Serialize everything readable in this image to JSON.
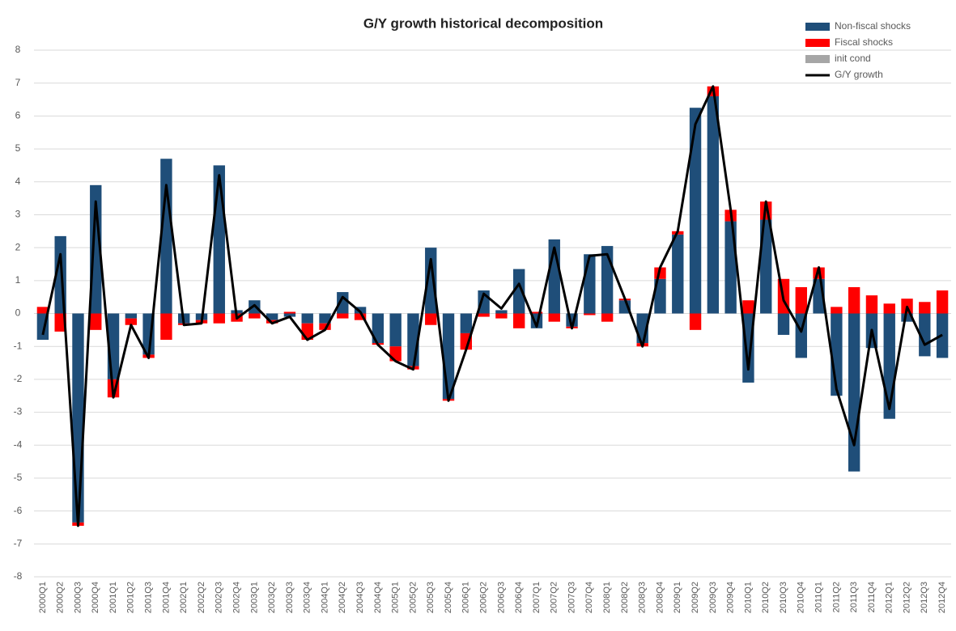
{
  "chart_data": {
    "type": "stacked_bar_line",
    "title": "G/Y growth historical decomposition",
    "categories": [
      "2000Q1",
      "2000Q2",
      "2000Q3",
      "2000Q4",
      "2001Q1",
      "2001Q2",
      "2001Q3",
      "2001Q4",
      "2002Q1",
      "2002Q2",
      "2002Q3",
      "2002Q4",
      "2003Q1",
      "2003Q2",
      "2003Q3",
      "2003Q4",
      "2004Q1",
      "2004Q2",
      "2004Q3",
      "2004Q4",
      "2005Q1",
      "2005Q2",
      "2005Q3",
      "2005Q4",
      "2006Q1",
      "2006Q2",
      "2006Q3",
      "2006Q4",
      "2007Q1",
      "2007Q2",
      "2007Q3",
      "2007Q4",
      "2008Q1",
      "2008Q2",
      "2008Q3",
      "2008Q4",
      "2009Q1",
      "2009Q2",
      "2009Q3",
      "2009Q4",
      "2010Q1",
      "2010Q2",
      "2010Q3",
      "2010Q4",
      "2011Q1",
      "2011Q2",
      "2011Q3",
      "2011Q4",
      "2012Q1",
      "2012Q2",
      "2012Q3",
      "2012Q4"
    ],
    "series": [
      {
        "name": "Non-fiscal shocks",
        "kind": "bar",
        "color": "#1f4e79",
        "values": [
          -0.8,
          2.35,
          -6.35,
          3.9,
          -2.0,
          -0.15,
          -1.25,
          4.7,
          -0.3,
          -0.2,
          4.5,
          0.1,
          0.4,
          -0.2,
          -0.1,
          -0.3,
          -0.3,
          0.65,
          0.2,
          -0.9,
          -1.0,
          -1.6,
          2.0,
          -2.6,
          -0.6,
          0.7,
          0.1,
          1.35,
          -0.45,
          2.25,
          -0.4,
          1.8,
          2.05,
          0.4,
          -0.9,
          1.05,
          2.4,
          6.25,
          6.6,
          2.8,
          -2.1,
          2.85,
          -0.65,
          -1.35,
          1.05,
          -2.5,
          -4.8,
          -1.05,
          -3.2,
          -0.25,
          -1.3,
          -1.35
        ]
      },
      {
        "name": "Fiscal shocks",
        "kind": "bar",
        "color": "#ff0000",
        "values": [
          0.2,
          -0.55,
          -0.1,
          -0.5,
          -0.55,
          -0.2,
          -0.1,
          -0.8,
          -0.05,
          -0.1,
          -0.3,
          -0.25,
          -0.15,
          -0.1,
          0.05,
          -0.5,
          -0.2,
          -0.15,
          -0.2,
          -0.05,
          -0.45,
          -0.1,
          -0.35,
          -0.05,
          -0.5,
          -0.1,
          -0.15,
          -0.45,
          0.05,
          -0.25,
          -0.05,
          -0.05,
          -0.25,
          0.05,
          -0.1,
          0.35,
          0.1,
          -0.5,
          0.3,
          0.35,
          0.4,
          0.55,
          1.05,
          0.8,
          0.35,
          0.2,
          0.8,
          0.55,
          0.3,
          0.45,
          0.35,
          0.7
        ]
      },
      {
        "name": "init cond",
        "kind": "bar",
        "color": "#a6a6a6",
        "values": [
          0,
          0,
          0,
          0,
          0,
          0,
          0,
          0,
          0,
          0,
          0,
          0,
          0,
          0,
          0,
          0,
          0,
          0,
          0,
          0,
          0,
          0,
          0,
          0,
          0,
          0,
          0,
          0,
          0,
          0,
          0,
          0,
          0,
          0,
          0,
          0,
          0,
          0,
          0,
          0,
          0,
          0,
          0,
          0,
          0,
          0,
          0,
          0,
          0,
          0,
          0,
          0
        ]
      },
      {
        "name": "G/Y growth",
        "kind": "line",
        "color": "#000000",
        "values": [
          -0.65,
          1.8,
          -6.45,
          3.4,
          -2.55,
          -0.35,
          -1.35,
          3.9,
          -0.35,
          -0.3,
          4.2,
          -0.15,
          0.25,
          -0.3,
          -0.1,
          -0.8,
          -0.5,
          0.5,
          0.05,
          -0.95,
          -1.45,
          -1.7,
          1.65,
          -2.65,
          -1.1,
          0.6,
          0.15,
          0.9,
          -0.4,
          2.0,
          -0.45,
          1.75,
          1.8,
          0.45,
          -1.0,
          1.4,
          2.5,
          5.75,
          6.9,
          3.15,
          -1.7,
          3.4,
          0.4,
          -0.55,
          1.4,
          -2.3,
          -4.0,
          -0.5,
          -2.9,
          0.2,
          -0.95,
          -0.65
        ]
      }
    ],
    "ylim": [
      -8,
      8
    ],
    "yticks": [
      -8,
      -7,
      -6,
      -5,
      -4,
      -3,
      -2,
      -1,
      0,
      1,
      2,
      3,
      4,
      5,
      6,
      7,
      8
    ],
    "grid": true,
    "legend": "upper right"
  }
}
